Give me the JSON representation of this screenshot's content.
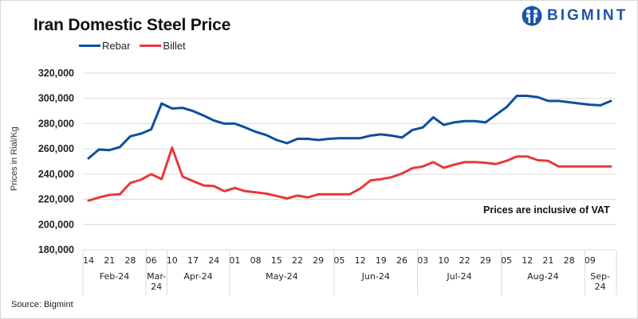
{
  "title": "Iran Domestic Steel Price",
  "brand": {
    "name": "BIGMINT",
    "color": "#1c55a8",
    "icon": "bigmint-logo-icon"
  },
  "source": "Source: Bigmint",
  "note": "Prices are inclusive  of VAT",
  "chart_data": {
    "type": "line",
    "title": "Iran Domestic Steel Price",
    "xlabel": "",
    "ylabel": "Prices in Rial/Kg",
    "ylim": [
      180000,
      320000
    ],
    "yticks": [
      180000,
      200000,
      220000,
      240000,
      260000,
      280000,
      300000,
      320000
    ],
    "ytick_labels": [
      "180,000",
      "200,000",
      "220,000",
      "240,000",
      "260,000",
      "280,000",
      "300,000",
      "320,000"
    ],
    "grid": true,
    "legend_position": "top-left",
    "n_points": 51,
    "x_tick_labels": [
      {
        "index": 0,
        "label": "14"
      },
      {
        "index": 2,
        "label": "21"
      },
      {
        "index": 4,
        "label": "28"
      },
      {
        "index": 6,
        "label": "06"
      },
      {
        "index": 8,
        "label": "10"
      },
      {
        "index": 10,
        "label": "17"
      },
      {
        "index": 12,
        "label": "24"
      },
      {
        "index": 14,
        "label": "01"
      },
      {
        "index": 16,
        "label": "08"
      },
      {
        "index": 18,
        "label": "15"
      },
      {
        "index": 20,
        "label": "22"
      },
      {
        "index": 22,
        "label": "29"
      },
      {
        "index": 24,
        "label": "05"
      },
      {
        "index": 26,
        "label": "12"
      },
      {
        "index": 28,
        "label": "19"
      },
      {
        "index": 30,
        "label": "26"
      },
      {
        "index": 32,
        "label": "03"
      },
      {
        "index": 34,
        "label": "10"
      },
      {
        "index": 36,
        "label": "22"
      },
      {
        "index": 38,
        "label": "29"
      },
      {
        "index": 40,
        "label": "05"
      },
      {
        "index": 42,
        "label": "12"
      },
      {
        "index": 44,
        "label": "21"
      },
      {
        "index": 46,
        "label": "28"
      },
      {
        "index": 48,
        "label": "09"
      }
    ],
    "months": [
      {
        "label": "Feb-24",
        "start": 0,
        "end": 5
      },
      {
        "label": "Mar-\n24",
        "start": 5,
        "end": 7
      },
      {
        "label": "Apr-24",
        "start": 7,
        "end": 13
      },
      {
        "label": "May-24",
        "start": 13,
        "end": 23
      },
      {
        "label": "Jun-24",
        "start": 23,
        "end": 31
      },
      {
        "label": "Jul-24",
        "start": 31,
        "end": 39
      },
      {
        "label": "Aug-24",
        "start": 39,
        "end": 47
      },
      {
        "label": "Sep-\n24",
        "start": 47,
        "end": 50
      }
    ],
    "series": [
      {
        "name": "Rebar",
        "color": "#0b4f9e",
        "values": [
          252500,
          259500,
          259000,
          261500,
          270000,
          272000,
          275500,
          296000,
          292000,
          292500,
          290000,
          286500,
          282500,
          280000,
          280000,
          277000,
          273500,
          271000,
          267000,
          264500,
          268000,
          268000,
          267000,
          268000,
          268500,
          268500,
          268500,
          270500,
          271500,
          270500,
          269000,
          275000,
          277000,
          285000,
          279000,
          281000,
          282000,
          282000,
          281000,
          287000,
          293000,
          302000,
          302000,
          301000,
          298000,
          298000,
          297000,
          296000,
          295000,
          294500,
          298000
        ]
      },
      {
        "name": "Billet",
        "color": "#e8383b",
        "values": [
          219000,
          221500,
          223500,
          224000,
          233000,
          235500,
          240000,
          236000,
          261000,
          238000,
          234500,
          231000,
          230500,
          226500,
          229000,
          226500,
          225500,
          224500,
          222700,
          220700,
          223000,
          221500,
          224000,
          224000,
          224000,
          224000,
          228500,
          235000,
          236000,
          237500,
          240500,
          244700,
          246000,
          249500,
          245000,
          247500,
          249500,
          249500,
          249000,
          248000,
          250500,
          254000,
          254000,
          251000,
          250500,
          246000,
          246000,
          246000,
          246000,
          246000,
          246000
        ]
      }
    ]
  }
}
